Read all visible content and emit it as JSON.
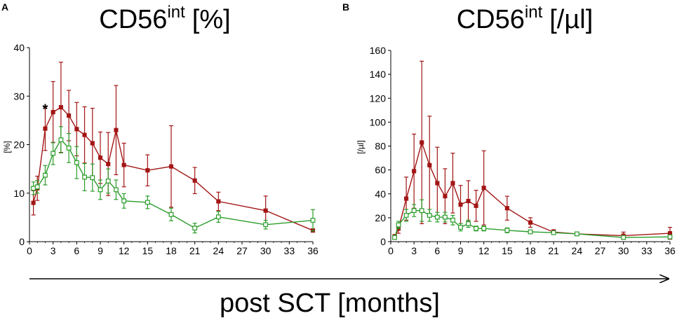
{
  "figure": {
    "xlabel": "post SCT [months]"
  },
  "chart_data": [
    {
      "type": "line",
      "panel": "A",
      "title_main": "CD56",
      "title_sup": "int",
      "title_unit": "[%]",
      "ylabel": "[%]",
      "xlim": [
        0,
        36
      ],
      "ylim": [
        0,
        40
      ],
      "xticks": [
        0,
        3,
        6,
        9,
        12,
        15,
        18,
        21,
        24,
        27,
        30,
        33,
        36
      ],
      "yticks": [
        0,
        10,
        20,
        30,
        40
      ],
      "annotations": [
        {
          "text": "*",
          "x": 2,
          "y": 27.5
        }
      ],
      "series": [
        {
          "name": "red",
          "color": "#a31515",
          "marker": "filled-square",
          "x": [
            0.5,
            1,
            2,
            3,
            4,
            5,
            6,
            7,
            8,
            9,
            10,
            11,
            12,
            15,
            18,
            21,
            24,
            30,
            36
          ],
          "y": [
            8,
            11,
            23.3,
            26.7,
            27.7,
            26,
            23.2,
            22,
            20.3,
            17.3,
            16,
            23,
            15.8,
            14.7,
            15.5,
            12.6,
            8.3,
            6.4,
            2.3
          ],
          "err": [
            2.5,
            2.5,
            4.5,
            6.3,
            9.3,
            5.2,
            5.5,
            5.8,
            7.2,
            5.3,
            6.5,
            9.2,
            4.5,
            3.2,
            8.4,
            2.7,
            1.9,
            3.0,
            0.3
          ]
        },
        {
          "name": "green",
          "color": "#2a9d2a",
          "marker": "open-square",
          "x": [
            0.5,
            1,
            2,
            3,
            4,
            5,
            6,
            7,
            8,
            9,
            10,
            11,
            12,
            15,
            18,
            21,
            24,
            30,
            36
          ],
          "y": [
            11,
            11.3,
            13.7,
            18.2,
            21,
            19.3,
            16.3,
            13.3,
            13.2,
            10.7,
            12.5,
            10.7,
            8.4,
            8.1,
            5.6,
            2.8,
            5.1,
            3.5,
            4.4
          ],
          "err": [
            1.3,
            1.3,
            2.0,
            2.3,
            2.7,
            3.0,
            3.3,
            2.8,
            2.8,
            2.0,
            2.5,
            2.0,
            1.5,
            1.3,
            1.3,
            1.0,
            1.1,
            0.9,
            2.2
          ]
        }
      ]
    },
    {
      "type": "line",
      "panel": "B",
      "title_main": "CD56",
      "title_sup": "int",
      "title_unit": "[/µl]",
      "ylabel": "[/µl]",
      "xlim": [
        0,
        36
      ],
      "ylim": [
        0,
        160
      ],
      "xticks": [
        0,
        3,
        6,
        9,
        12,
        15,
        18,
        21,
        24,
        27,
        30,
        33,
        36
      ],
      "yticks": [
        0,
        20,
        40,
        60,
        80,
        100,
        120,
        140,
        160
      ],
      "series": [
        {
          "name": "red",
          "color": "#a31515",
          "marker": "filled-square",
          "x": [
            0.5,
            1,
            2,
            3,
            4,
            5,
            6,
            7,
            8,
            9,
            10,
            11,
            12,
            15,
            18,
            21,
            24,
            30,
            36
          ],
          "y": [
            4,
            11,
            36,
            59,
            83,
            64,
            49,
            38,
            49,
            31,
            34,
            30,
            45,
            28,
            16,
            8,
            6.5,
            5,
            7
          ],
          "err": [
            2,
            4,
            18,
            31,
            68,
            41,
            30,
            23,
            25,
            16,
            17,
            13,
            31,
            10,
            4,
            2,
            1.5,
            3,
            5
          ]
        },
        {
          "name": "green",
          "color": "#2a9d2a",
          "marker": "open-square",
          "x": [
            0.5,
            1,
            2,
            3,
            4,
            5,
            6,
            7,
            8,
            9,
            10,
            11,
            12,
            15,
            18,
            21,
            24,
            30,
            36
          ],
          "y": [
            3.5,
            14,
            22,
            26,
            26,
            22,
            20.5,
            20.5,
            18,
            12,
            15,
            11,
            11,
            9.5,
            8.2,
            7.5,
            6.5,
            3.5,
            4
          ],
          "err": [
            1,
            3,
            5,
            5,
            9,
            5,
            4,
            4,
            4,
            3,
            3,
            2,
            2,
            2,
            1.5,
            1.3,
            1.3,
            1,
            1.2
          ]
        }
      ]
    }
  ]
}
